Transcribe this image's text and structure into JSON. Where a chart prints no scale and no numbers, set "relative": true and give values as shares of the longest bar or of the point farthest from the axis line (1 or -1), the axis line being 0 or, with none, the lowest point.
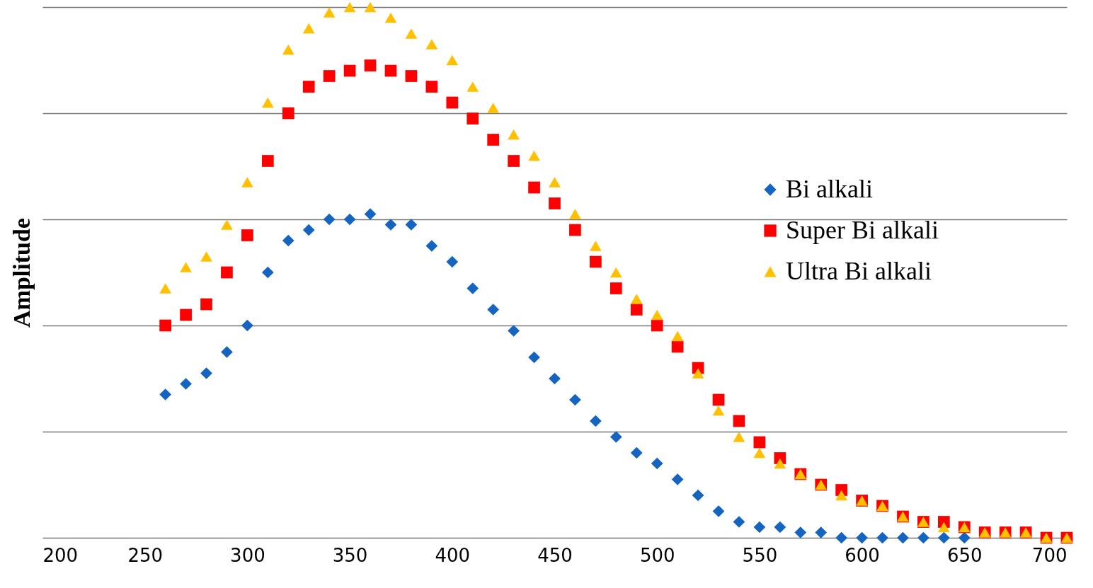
{
  "chart_data": {
    "type": "scatter",
    "ylabel": "Amplitude",
    "relative": true,
    "grid": "y",
    "legend": "right",
    "x": [
      260,
      270,
      280,
      290,
      300,
      310,
      320,
      330,
      340,
      350,
      360,
      370,
      380,
      390,
      400,
      410,
      420,
      430,
      440,
      450,
      460,
      470,
      480,
      490,
      500,
      510,
      520,
      530,
      540,
      550,
      560,
      570,
      580,
      590,
      600,
      610,
      620,
      630,
      640,
      650,
      660,
      670,
      680,
      690,
      700
    ],
    "xlim": [
      200,
      700
    ],
    "xticks": [
      200,
      250,
      300,
      350,
      400,
      450,
      500,
      550,
      600,
      650,
      700
    ],
    "series": [
      {
        "name": "Bi alkali",
        "color": "#1565c0",
        "marker": "diamond",
        "values": [
          0.27,
          0.29,
          0.31,
          0.35,
          0.4,
          0.5,
          0.56,
          0.58,
          0.6,
          0.6,
          0.61,
          0.59,
          0.59,
          0.55,
          0.52,
          0.47,
          0.43,
          0.39,
          0.34,
          0.3,
          0.26,
          0.22,
          0.19,
          0.16,
          0.14,
          0.11,
          0.08,
          0.05,
          0.03,
          0.02,
          0.02,
          0.01,
          0.01,
          0.0,
          0.0,
          0.0,
          0.0,
          0.0,
          0.0,
          0.0,
          null,
          null,
          null,
          null,
          null
        ]
      },
      {
        "name": "Super Bi alkali",
        "color": "#ff0000",
        "marker": "square",
        "values": [
          0.4,
          0.42,
          0.44,
          0.5,
          0.57,
          0.71,
          0.8,
          0.85,
          0.87,
          0.88,
          0.89,
          0.88,
          0.87,
          0.85,
          0.82,
          0.79,
          0.75,
          0.71,
          0.66,
          0.63,
          0.58,
          0.52,
          0.47,
          0.43,
          0.4,
          0.36,
          0.32,
          0.26,
          0.22,
          0.18,
          0.15,
          0.12,
          0.1,
          0.09,
          0.07,
          0.06,
          0.04,
          0.03,
          0.03,
          0.02,
          0.01,
          0.01,
          0.01,
          0.0,
          0.0
        ]
      },
      {
        "name": "Ultra Bi alkali",
        "color": "#ffc000",
        "marker": "triangle",
        "values": [
          0.47,
          0.51,
          0.53,
          0.59,
          0.67,
          0.82,
          0.92,
          0.96,
          0.99,
          1.0,
          1.0,
          0.98,
          0.95,
          0.93,
          0.9,
          0.85,
          0.81,
          0.76,
          0.72,
          0.67,
          0.61,
          0.55,
          0.5,
          0.45,
          0.42,
          0.38,
          0.31,
          0.24,
          0.19,
          0.16,
          0.14,
          0.12,
          0.1,
          0.08,
          0.07,
          0.06,
          0.04,
          0.03,
          0.02,
          0.02,
          0.01,
          0.01,
          0.01,
          0.0,
          0.0
        ]
      }
    ]
  }
}
